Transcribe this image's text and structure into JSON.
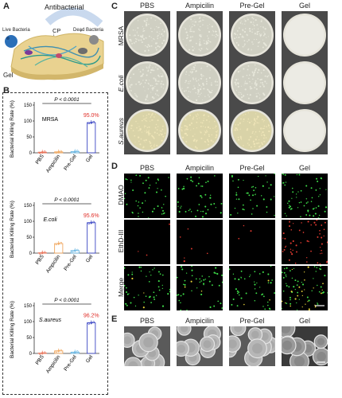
{
  "panels": {
    "a": "A",
    "b": "B",
    "c": "C",
    "d": "D",
    "e": "E"
  },
  "schematic": {
    "title": "Antibacterial",
    "live": "Live Bacteria",
    "cp": "CP",
    "dead": "Dead Bacteria",
    "gel": "Gel"
  },
  "columns": [
    "PBS",
    "Ampicilin",
    "Pre-Gel",
    "Gel"
  ],
  "c_rows": [
    "MRSA",
    "E.coli",
    "S.aureus"
  ],
  "d_rows": [
    "DMAO",
    "EthD-III",
    "Merge"
  ],
  "chart_data": [
    {
      "type": "bar",
      "title": "MRSA",
      "ylabel": "Bacterial Killing Rate (%)",
      "categories": [
        "PBS",
        "Ampicilin",
        "Pre-Gel",
        "Gel"
      ],
      "values": [
        2,
        3,
        4,
        95.0
      ],
      "ylim": [
        0,
        150
      ],
      "yticks": [
        0,
        50,
        100,
        150
      ],
      "pvalue": "P < 0.0001",
      "highlight": "95.0%",
      "colors": [
        "#e8735a",
        "#f0a860",
        "#6ab7e3",
        "#3b46c4"
      ]
    },
    {
      "type": "bar",
      "title": "E.coli",
      "ylabel": "Bacterial Killing Rate (%)",
      "categories": [
        "PBS",
        "Ampicilin",
        "Pre-Gel",
        "Gel"
      ],
      "values": [
        1,
        30,
        8,
        95.6
      ],
      "ylim": [
        0,
        150
      ],
      "yticks": [
        0,
        50,
        100,
        150
      ],
      "pvalue": "P < 0.0001",
      "highlight": "95.6%",
      "colors": [
        "#e8735a",
        "#f0a860",
        "#6ab7e3",
        "#3b46c4"
      ]
    },
    {
      "type": "bar",
      "title": "S.aureus",
      "ylabel": "Bacterial Killing Rate (%)",
      "categories": [
        "PBS",
        "Ampicilin",
        "Pre-Gel",
        "Gel"
      ],
      "values": [
        1,
        8,
        4,
        96.2
      ],
      "ylim": [
        0,
        150
      ],
      "yticks": [
        0,
        50,
        100,
        150
      ],
      "pvalue": "P < 0.0001",
      "highlight": "96.2%",
      "colors": [
        "#e8735a",
        "#f0a860",
        "#6ab7e3",
        "#3b46c4"
      ]
    }
  ]
}
